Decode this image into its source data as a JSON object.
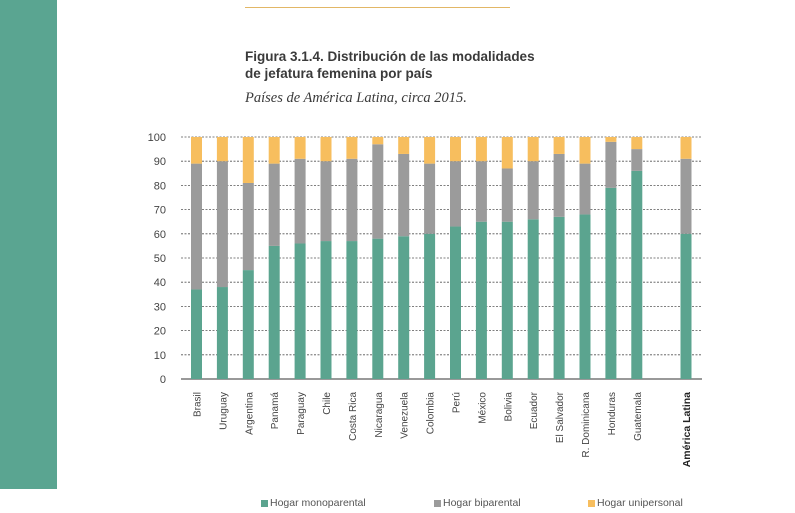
{
  "figure": {
    "title_line1": "Figura 3.1.4. Distribución de las modalidades",
    "title_line2": "de jefatura femenina por país",
    "subtitle": "Países de América Latina, circa 2015."
  },
  "colors": {
    "band": "#5aa591",
    "monoparental": "#5ba48f",
    "biparental": "#9b9b9b",
    "unipersonal": "#f7be5e"
  },
  "chart_data": {
    "type": "bar",
    "stacked": true,
    "title": "Distribución de las modalidades de jefatura femenina por país",
    "xlabel": "",
    "ylabel": "",
    "ylim": [
      0,
      100
    ],
    "yticks": [
      0,
      10,
      20,
      30,
      40,
      50,
      60,
      70,
      80,
      90,
      100
    ],
    "categories": [
      "Brasil",
      "Uruguay",
      "Argentina",
      "Panamá",
      "Paraguay",
      "Chile",
      "Costa Rica",
      "Nicaragua",
      "Venezuela",
      "Colombia",
      "Perú",
      "México",
      "Bolivia",
      "Ecuador",
      "El Salvador",
      "R. Dominicana",
      "Honduras",
      "Guatemala",
      "América Latina"
    ],
    "series": [
      {
        "name": "Hogar monoparental",
        "values": [
          37,
          38,
          45,
          55,
          56,
          57,
          57,
          58,
          59,
          60,
          63,
          65,
          65,
          66,
          67,
          68,
          79,
          86,
          60
        ]
      },
      {
        "name": "Hogar biparental",
        "values": [
          52,
          52,
          36,
          34,
          35,
          33,
          34,
          39,
          34,
          29,
          27,
          25,
          22,
          24,
          26,
          21,
          19,
          9,
          31
        ]
      },
      {
        "name": "Hogar unipersonal",
        "values": [
          11,
          10,
          19,
          11,
          9,
          10,
          9,
          3,
          7,
          11,
          10,
          10,
          13,
          10,
          7,
          11,
          2,
          5,
          9
        ]
      }
    ],
    "legend": "bottom"
  }
}
